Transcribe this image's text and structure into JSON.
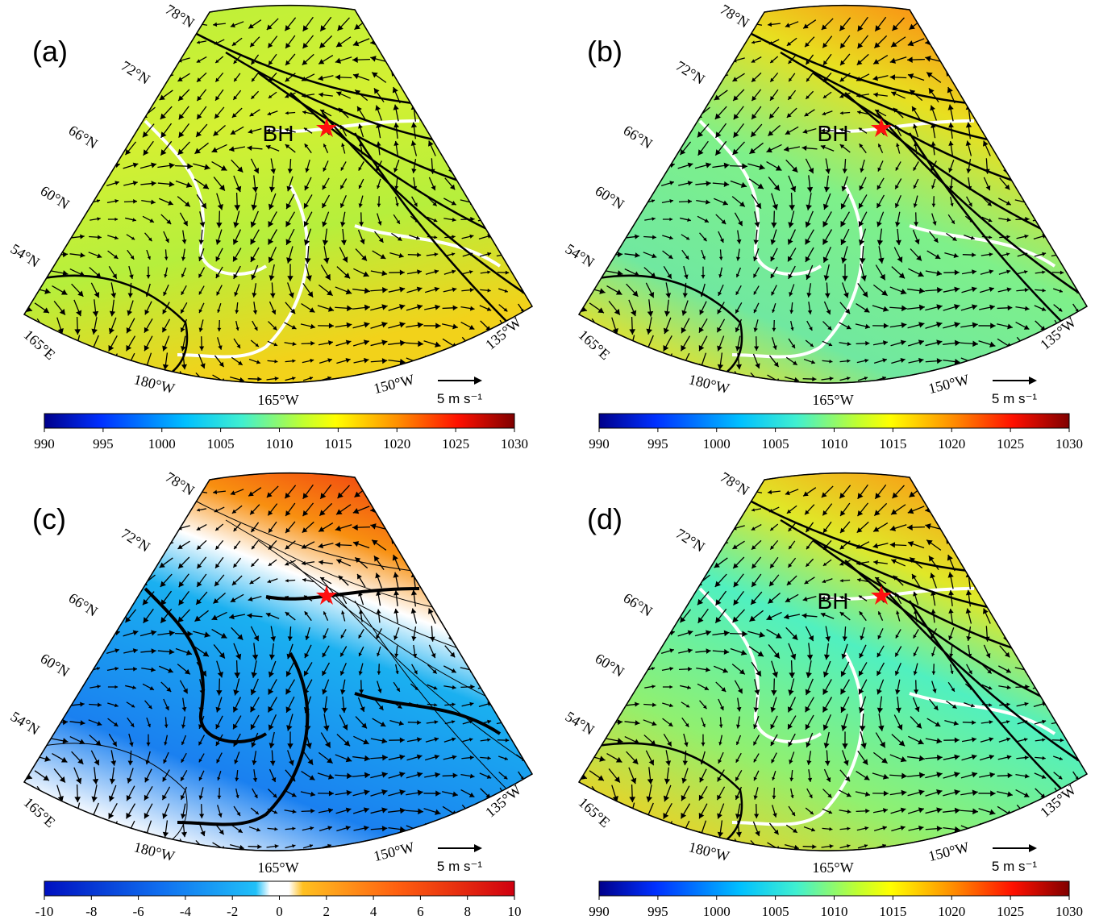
{
  "panels": [
    {
      "label": "(a)",
      "bh": "BH",
      "lat_labels": [
        "78°N",
        "72°N",
        "66°N",
        "60°N",
        "54°N"
      ],
      "lon_labels": [
        "165°E",
        "180°W",
        "165°W",
        "150°W",
        "135°W"
      ],
      "scale_label": "5 m s⁻¹",
      "colorbar_ticks": [
        990,
        995,
        1000,
        1005,
        1010,
        1015,
        1020,
        1025,
        1030
      ]
    },
    {
      "label": "(b)",
      "bh": "BH",
      "lat_labels": [
        "78°N",
        "72°N",
        "66°N",
        "60°N",
        "54°N"
      ],
      "lon_labels": [
        "165°E",
        "180°W",
        "165°W",
        "150°W",
        "135°W"
      ],
      "scale_label": "5 m s⁻¹",
      "colorbar_ticks": [
        990,
        995,
        1000,
        1005,
        1010,
        1015,
        1020,
        1025,
        1030
      ]
    },
    {
      "label": "(c)",
      "lat_labels": [
        "78°N",
        "72°N",
        "66°N",
        "60°N",
        "54°N"
      ],
      "lon_labels": [
        "165°E",
        "180°W",
        "165°W",
        "150°W",
        "135°W"
      ],
      "scale_label": "5 m s⁻¹",
      "colorbar_ticks": [
        -10,
        -8,
        -6,
        -4,
        -2,
        0,
        2,
        4,
        6,
        8,
        10
      ]
    },
    {
      "label": "(d)",
      "bh": "BH",
      "lat_labels": [
        "78°N",
        "72°N",
        "66°N",
        "60°N",
        "54°N"
      ],
      "lon_labels": [
        "165°E",
        "180°W",
        "165°W",
        "150°W",
        "135°W"
      ],
      "scale_label": "5 m s⁻¹",
      "colorbar_ticks": [
        990,
        995,
        1000,
        1005,
        1010,
        1015,
        1020,
        1025,
        1030
      ]
    }
  ]
}
